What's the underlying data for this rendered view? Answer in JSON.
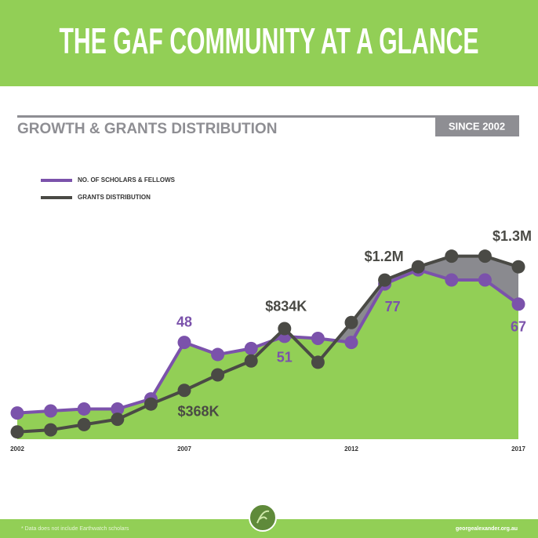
{
  "header": {
    "title": "THE GAF COMMUNITY AT A GLANCE"
  },
  "chart_data": {
    "type": "line",
    "title": "GROWTH & GRANTS DISTRIBUTION",
    "badge": "SINCE 2002",
    "x": [
      2002,
      2003,
      2004,
      2005,
      2006,
      2007,
      2008,
      2009,
      2010,
      2011,
      2012,
      2013,
      2014,
      2015,
      2016,
      2017
    ],
    "xlim": [
      2002,
      2017
    ],
    "xticks": [
      2002,
      2007,
      2012,
      2017
    ],
    "ylim": [
      0,
      100
    ],
    "y2lim": [
      0,
      1520000
    ],
    "series": [
      {
        "name": "NO. OF SCHOLARS & FELLOWS",
        "color": "#7b52ab",
        "values": [
          13,
          14,
          15,
          15,
          20,
          48,
          42,
          45,
          51,
          50,
          48,
          77,
          84,
          79,
          79,
          67
        ],
        "value_labels": [
          null,
          null,
          null,
          null,
          null,
          "48",
          null,
          null,
          "51",
          null,
          null,
          "77",
          null,
          null,
          null,
          "67"
        ]
      },
      {
        "name": "GRANTS DISTRIBUTION",
        "color": "#4a4a45",
        "axis": "y2",
        "values": [
          55000,
          70000,
          110000,
          150000,
          265000,
          368000,
          485000,
          590000,
          834000,
          580000,
          880000,
          1200000,
          1300000,
          1380000,
          1380000,
          1300000
        ],
        "value_labels": [
          null,
          null,
          null,
          null,
          null,
          "$368K",
          null,
          null,
          "$834K",
          null,
          null,
          "$1.2M",
          null,
          null,
          null,
          "$1.3M"
        ]
      }
    ]
  },
  "footer": {
    "note": "* Data does not include Earthwatch scholars",
    "website": "georgealexander.org.au"
  }
}
